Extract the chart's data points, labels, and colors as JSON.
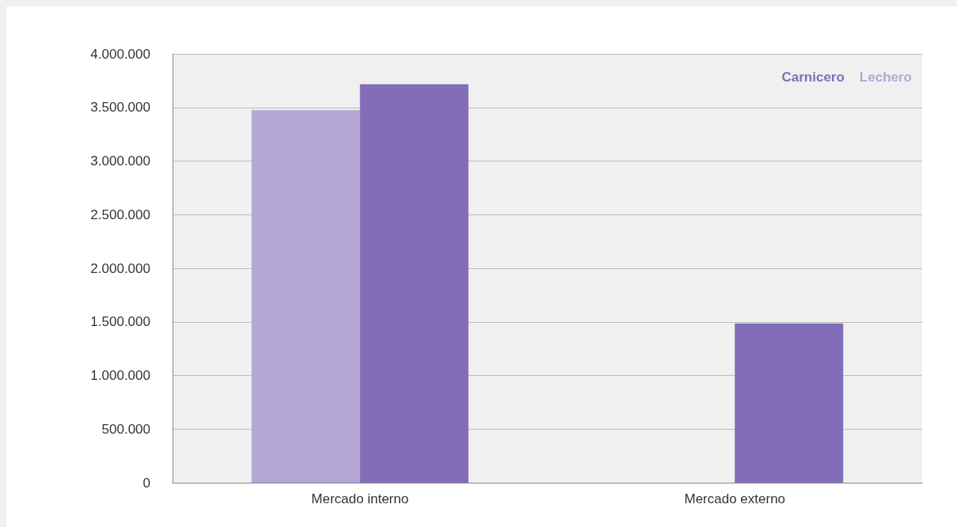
{
  "chart_data": {
    "type": "bar",
    "categories": [
      "Mercado interno",
      "Mercado externo"
    ],
    "series": [
      {
        "name": "Lechero",
        "color": "#b4a7d6",
        "values": [
          3475000,
          null
        ]
      },
      {
        "name": "Carnicero",
        "color": "#836db8",
        "values": [
          3715000,
          1485000
        ]
      }
    ],
    "ylim": [
      0,
      4000000
    ],
    "yticks": [
      0,
      {
        "value": 500000,
        "label": "500.000"
      },
      {
        "value": 1000000,
        "label": "1.000.000"
      },
      {
        "value": 1500000,
        "label": "1.500.000"
      },
      {
        "value": 2000000,
        "label": "2.000.000"
      },
      {
        "value": 2500000,
        "label": "2.500.000"
      },
      {
        "value": 3000000,
        "label": "3.000.000"
      },
      {
        "value": 3500000,
        "label": "3.500.000"
      },
      {
        "value": 4000000,
        "label": "4.000.000"
      }
    ],
    "grid": "y",
    "legend": "top right"
  }
}
